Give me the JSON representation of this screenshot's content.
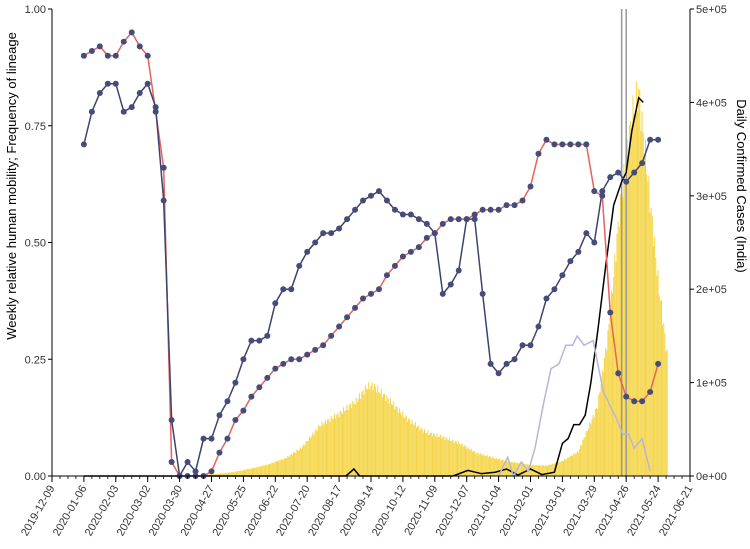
{
  "chart_data": {
    "type": "line",
    "ylabel_left": "Weekly relative human mobility; Frequency of lineage",
    "ylabel_right": "Daily Confirmed Cases (India)",
    "ylim_left": [
      0,
      1
    ],
    "ylim_right": [
      0,
      500000
    ],
    "xlim": [
      "2019-12-09",
      "2021-06-21"
    ],
    "x_ticks": [
      "2019-12-09",
      "2020-01-06",
      "2020-02-03",
      "2020-03-02",
      "2020-03-30",
      "2020-04-27",
      "2020-05-25",
      "2020-06-22",
      "2020-07-20",
      "2020-08-17",
      "2020-09-14",
      "2020-10-12",
      "2020-11-09",
      "2020-12-07",
      "2021-01-04",
      "2021-02-01",
      "2021-03-01",
      "2021-03-29",
      "2021-04-26",
      "2021-05-24",
      "2021-06-21"
    ],
    "y_ticks_left": [
      "0.00",
      "0.25",
      "0.50",
      "0.75",
      "1.00"
    ],
    "y_ticks_right": [
      "0e+00",
      "1e+05",
      "2e+05",
      "3e+05",
      "4e+05",
      "5e+05"
    ],
    "vertical_lines": [
      "2021-04-22",
      "2021-04-26"
    ],
    "colors": {
      "bars": "#f5d547",
      "mobility_red_line": "#e8625a",
      "mobility_dots": "#464c7a",
      "mobility_blue_line": "#3e4270",
      "lineage_black": "#000000",
      "lineage_lavender": "#b6b6d8",
      "vertical_line": "#999999"
    },
    "cases_daily": [
      [
        "2020-04-15",
        1000
      ],
      [
        "2020-05-01",
        2000
      ],
      [
        "2020-05-15",
        4000
      ],
      [
        "2020-06-01",
        8000
      ],
      [
        "2020-06-15",
        12000
      ],
      [
        "2020-07-01",
        19000
      ],
      [
        "2020-07-15",
        30000
      ],
      [
        "2020-08-01",
        55000
      ],
      [
        "2020-08-15",
        65000
      ],
      [
        "2020-09-01",
        80000
      ],
      [
        "2020-09-10",
        95000
      ],
      [
        "2020-09-16",
        97000
      ],
      [
        "2020-10-01",
        80000
      ],
      [
        "2020-10-15",
        62000
      ],
      [
        "2020-11-01",
        47000
      ],
      [
        "2020-11-15",
        42000
      ],
      [
        "2020-12-01",
        35000
      ],
      [
        "2020-12-15",
        25000
      ],
      [
        "2021-01-01",
        19000
      ],
      [
        "2021-01-15",
        15000
      ],
      [
        "2021-02-01",
        12000
      ],
      [
        "2021-02-15",
        11000
      ],
      [
        "2021-03-01",
        16000
      ],
      [
        "2021-03-15",
        26000
      ],
      [
        "2021-04-01",
        75000
      ],
      [
        "2021-04-10",
        150000
      ],
      [
        "2021-04-20",
        280000
      ],
      [
        "2021-05-01",
        385000
      ],
      [
        "2021-05-07",
        412000
      ],
      [
        "2021-05-15",
        320000
      ],
      [
        "2021-05-24",
        210000
      ],
      [
        "2021-06-01",
        130000
      ]
    ],
    "series": [
      {
        "name": "",
        "style": "red-line-with-dots",
        "x": [
          "2020-01-06",
          "2020-01-13",
          "2020-01-20",
          "2020-01-27",
          "2020-02-03",
          "2020-02-10",
          "2020-02-17",
          "2020-02-24",
          "2020-03-02",
          "2020-03-09",
          "2020-03-16",
          "2020-03-23",
          "2020-03-30",
          "2020-04-06",
          "2020-04-13",
          "2020-04-20",
          "2020-04-27",
          "2020-05-04",
          "2020-05-11",
          "2020-05-18",
          "2020-05-25",
          "2020-06-01",
          "2020-06-08",
          "2020-06-15",
          "2020-06-22",
          "2020-06-29",
          "2020-07-06",
          "2020-07-13",
          "2020-07-20",
          "2020-07-27",
          "2020-08-03",
          "2020-08-10",
          "2020-08-17",
          "2020-08-24",
          "2020-08-31",
          "2020-09-07",
          "2020-09-14",
          "2020-09-21",
          "2020-09-28",
          "2020-10-05",
          "2020-10-12",
          "2020-10-19",
          "2020-10-26",
          "2020-11-02",
          "2020-11-09",
          "2020-11-16",
          "2020-11-23",
          "2020-11-30",
          "2020-12-07",
          "2020-12-14",
          "2020-12-21",
          "2020-12-28",
          "2021-01-04",
          "2021-01-11",
          "2021-01-18",
          "2021-01-25",
          "2021-02-01",
          "2021-02-08",
          "2021-02-15",
          "2021-02-22",
          "2021-03-01",
          "2021-03-08",
          "2021-03-15",
          "2021-03-22",
          "2021-03-29",
          "2021-04-05",
          "2021-04-12",
          "2021-04-19",
          "2021-04-26",
          "2021-05-03",
          "2021-05-10",
          "2021-05-17",
          "2021-05-24"
        ],
        "values": [
          0.9,
          0.91,
          0.92,
          0.9,
          0.9,
          0.93,
          0.95,
          0.92,
          0.9,
          0.78,
          0.66,
          0.03,
          0.0,
          0.0,
          0.0,
          0.0,
          0.01,
          0.05,
          0.08,
          0.12,
          0.14,
          0.17,
          0.19,
          0.21,
          0.23,
          0.24,
          0.25,
          0.25,
          0.26,
          0.27,
          0.28,
          0.3,
          0.32,
          0.34,
          0.36,
          0.38,
          0.39,
          0.4,
          0.43,
          0.45,
          0.47,
          0.48,
          0.49,
          0.51,
          0.52,
          0.54,
          0.55,
          0.55,
          0.55,
          0.56,
          0.57,
          0.57,
          0.57,
          0.58,
          0.58,
          0.59,
          0.62,
          0.69,
          0.72,
          0.71,
          0.71,
          0.71,
          0.71,
          0.71,
          0.61,
          0.6,
          0.35,
          0.22,
          0.17,
          0.16,
          0.16,
          0.18,
          0.24
        ]
      },
      {
        "name": "",
        "style": "blue-line-with-dots",
        "x": [
          "2020-01-06",
          "2020-01-13",
          "2020-01-20",
          "2020-01-27",
          "2020-02-03",
          "2020-02-10",
          "2020-02-17",
          "2020-02-24",
          "2020-03-02",
          "2020-03-09",
          "2020-03-16",
          "2020-03-23",
          "2020-03-30",
          "2020-04-06",
          "2020-04-13",
          "2020-04-20",
          "2020-04-27",
          "2020-05-04",
          "2020-05-11",
          "2020-05-18",
          "2020-05-25",
          "2020-06-01",
          "2020-06-08",
          "2020-06-15",
          "2020-06-22",
          "2020-06-29",
          "2020-07-06",
          "2020-07-13",
          "2020-07-20",
          "2020-07-27",
          "2020-08-03",
          "2020-08-10",
          "2020-08-17",
          "2020-08-24",
          "2020-08-31",
          "2020-09-07",
          "2020-09-14",
          "2020-09-21",
          "2020-09-28",
          "2020-10-05",
          "2020-10-12",
          "2020-10-19",
          "2020-10-26",
          "2020-11-02",
          "2020-11-09",
          "2020-11-16",
          "2020-11-23",
          "2020-11-30",
          "2020-12-07",
          "2020-12-14",
          "2020-12-21",
          "2020-12-28",
          "2021-01-04",
          "2021-01-11",
          "2021-01-18",
          "2021-01-25",
          "2021-02-01",
          "2021-02-08",
          "2021-02-15",
          "2021-02-22",
          "2021-03-01",
          "2021-03-08",
          "2021-03-15",
          "2021-03-22",
          "2021-03-29",
          "2021-04-05",
          "2021-04-12",
          "2021-04-19",
          "2021-04-26",
          "2021-05-03",
          "2021-05-10",
          "2021-05-17",
          "2021-05-24"
        ],
        "values": [
          0.71,
          0.78,
          0.82,
          0.84,
          0.84,
          0.78,
          0.79,
          0.82,
          0.84,
          0.79,
          0.59,
          0.12,
          0.0,
          0.03,
          0.01,
          0.08,
          0.08,
          0.13,
          0.16,
          0.2,
          0.25,
          0.29,
          0.29,
          0.3,
          0.37,
          0.4,
          0.4,
          0.45,
          0.48,
          0.5,
          0.52,
          0.52,
          0.53,
          0.55,
          0.57,
          0.59,
          0.6,
          0.61,
          0.59,
          0.57,
          0.56,
          0.56,
          0.55,
          0.54,
          0.52,
          0.39,
          0.41,
          0.44,
          0.55,
          0.55,
          0.39,
          0.24,
          0.22,
          0.24,
          0.25,
          0.28,
          0.28,
          0.32,
          0.38,
          0.4,
          0.43,
          0.46,
          0.48,
          0.52,
          0.5,
          0.61,
          0.64,
          0.65,
          0.63,
          0.65,
          0.67,
          0.72,
          0.72
        ]
      }
    ],
    "lineage_series": [
      {
        "name": "",
        "style": "black-line",
        "x": [
          "2020-01-06",
          "2020-08-23",
          "2020-08-30",
          "2020-09-04",
          "2020-10-01",
          "2020-11-25",
          "2020-12-08",
          "2020-12-20",
          "2021-01-01",
          "2021-01-11",
          "2021-01-21",
          "2021-02-01",
          "2021-02-11",
          "2021-02-22",
          "2021-03-01",
          "2021-03-06",
          "2021-03-11",
          "2021-03-16",
          "2021-03-21",
          "2021-03-26",
          "2021-04-01",
          "2021-04-08",
          "2021-04-15",
          "2021-04-22",
          "2021-04-26",
          "2021-05-01",
          "2021-05-07",
          "2021-05-11"
        ],
        "values": [
          0.0,
          0.0,
          0.015,
          0.0,
          0.0,
          0.0,
          0.012,
          0.005,
          0.008,
          0.015,
          0.002,
          0.015,
          0.003,
          0.008,
          0.07,
          0.08,
          0.11,
          0.11,
          0.13,
          0.2,
          0.31,
          0.45,
          0.58,
          0.63,
          0.65,
          0.74,
          0.81,
          0.8
        ]
      },
      {
        "name": "",
        "style": "lavender-line",
        "x": [
          "2021-01-04",
          "2021-01-12",
          "2021-01-17",
          "2021-01-24",
          "2021-01-30",
          "2021-02-05",
          "2021-02-12",
          "2021-02-19",
          "2021-02-26",
          "2021-03-04",
          "2021-03-10",
          "2021-03-14",
          "2021-03-20",
          "2021-03-28",
          "2021-04-06",
          "2021-04-12",
          "2021-04-18",
          "2021-04-23",
          "2021-04-28",
          "2021-05-03",
          "2021-05-10",
          "2021-05-17"
        ],
        "values": [
          0.0,
          0.04,
          0.0,
          0.03,
          0.01,
          0.06,
          0.15,
          0.23,
          0.24,
          0.28,
          0.28,
          0.3,
          0.28,
          0.29,
          0.18,
          0.15,
          0.12,
          0.09,
          0.09,
          0.06,
          0.08,
          0.01
        ]
      }
    ],
    "grid": false,
    "legend": "none"
  }
}
